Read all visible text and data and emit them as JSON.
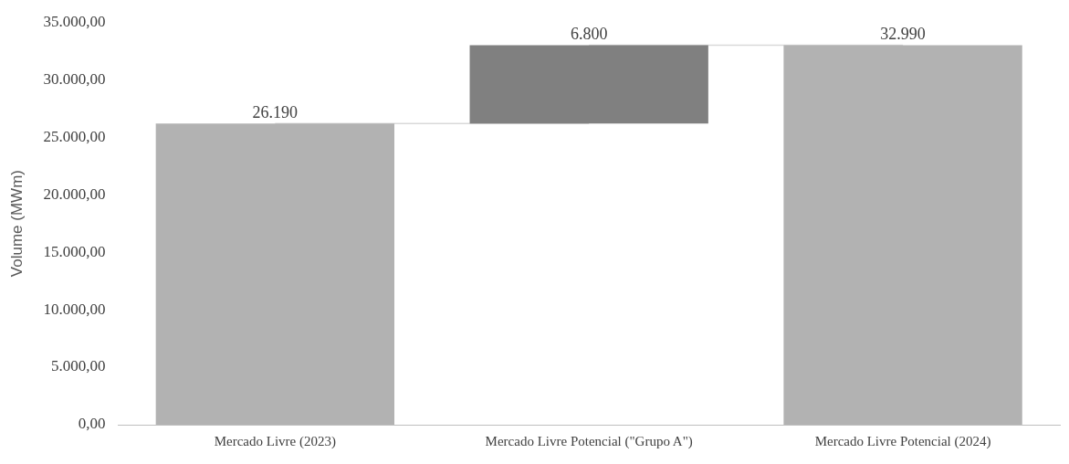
{
  "chart_data": {
    "type": "bar",
    "ylabel": "Volume (MWm)",
    "categories": [
      "Mercado Livre (2023)",
      "Mercado Livre Potencial (\"Grupo A\")",
      "Mercado Livre Potencial (2024)"
    ],
    "values": [
      26190,
      6800,
      32990
    ],
    "base": [
      0,
      26190,
      0
    ],
    "colors": [
      "#b2b2b2",
      "#808080",
      "#b2b2b2"
    ],
    "value_labels": [
      "26.190",
      "6.800",
      "32.990"
    ],
    "series": [
      {
        "type": "line",
        "color": "#d9d9d9",
        "values": [
          26190,
          26190,
          null
        ]
      },
      {
        "type": "line",
        "color": "#d9d9d9",
        "values": [
          null,
          32990,
          32990
        ]
      }
    ],
    "marker": "none",
    "ylim": [
      0,
      35000
    ],
    "yticks": [
      {
        "value": 0,
        "label": "0,00"
      },
      {
        "value": 5000,
        "label": "5.000,00"
      },
      {
        "value": 10000,
        "label": "10.000,00"
      },
      {
        "value": 15000,
        "label": "15.000,00"
      },
      {
        "value": 20000,
        "label": "20.000,00"
      },
      {
        "value": 25000,
        "label": "25.000,00"
      },
      {
        "value": 30000,
        "label": "30.000,00"
      },
      {
        "value": 35000,
        "label": "35.000,00"
      }
    ],
    "grid": false,
    "legend": false
  }
}
